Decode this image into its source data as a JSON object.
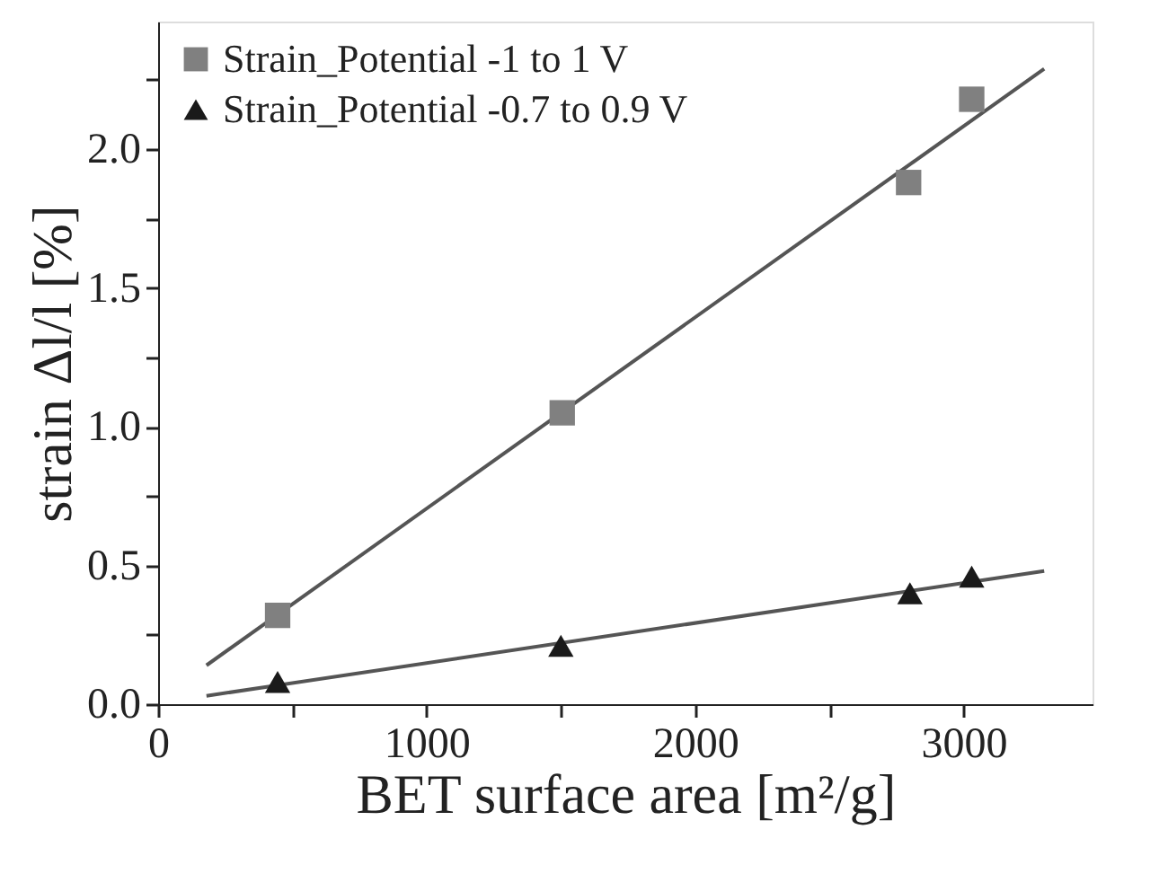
{
  "chart_data": {
    "type": "scatter",
    "xlabel": "BET surface area [m²/g]",
    "ylabel": "strain Δl/l  [%]",
    "xlim": [
      0,
      3480
    ],
    "ylim": [
      0,
      2.46
    ],
    "xticks": [
      0,
      {
        "value": 500,
        "label": null
      },
      1000,
      {
        "value": 1500,
        "label": null
      },
      2000,
      {
        "value": 2500,
        "label": null
      },
      3000
    ],
    "yticks": [
      {
        "value": 0,
        "label": "0.0"
      },
      {
        "value": 0.25,
        "label": null
      },
      0.5,
      {
        "value": 0.75,
        "label": null
      },
      {
        "value": 1,
        "label": "1.0"
      },
      {
        "value": 1.25,
        "label": null
      },
      1.5,
      {
        "value": 1.75,
        "label": null
      },
      {
        "value": 2,
        "label": "2.0"
      },
      {
        "value": 2.25,
        "label": null
      }
    ],
    "legend": "top left",
    "grid": false,
    "series": [
      {
        "name": "Strain_Potential -1 to 1 V",
        "color": "#808080",
        "marker": "square",
        "x": [
          445,
          1505,
          2795,
          3030
        ],
        "values": [
          0.32,
          1.05,
          1.88,
          2.18
        ]
      },
      {
        "name": "Strain_Potential -0.7 to 0.9 V",
        "color": "#1a1a1a",
        "marker": "triangle",
        "x": [
          445,
          1500,
          2800,
          3030
        ],
        "values": [
          0.08,
          0.21,
          0.4,
          0.46
        ]
      },
      {
        "type": "line",
        "color": "#555555",
        "x": [
          180,
          3300
        ],
        "values": [
          0.14,
          2.29
        ]
      },
      {
        "type": "line",
        "color": "#555555",
        "x": [
          180,
          3300
        ],
        "values": [
          0.03,
          0.48
        ]
      }
    ]
  }
}
